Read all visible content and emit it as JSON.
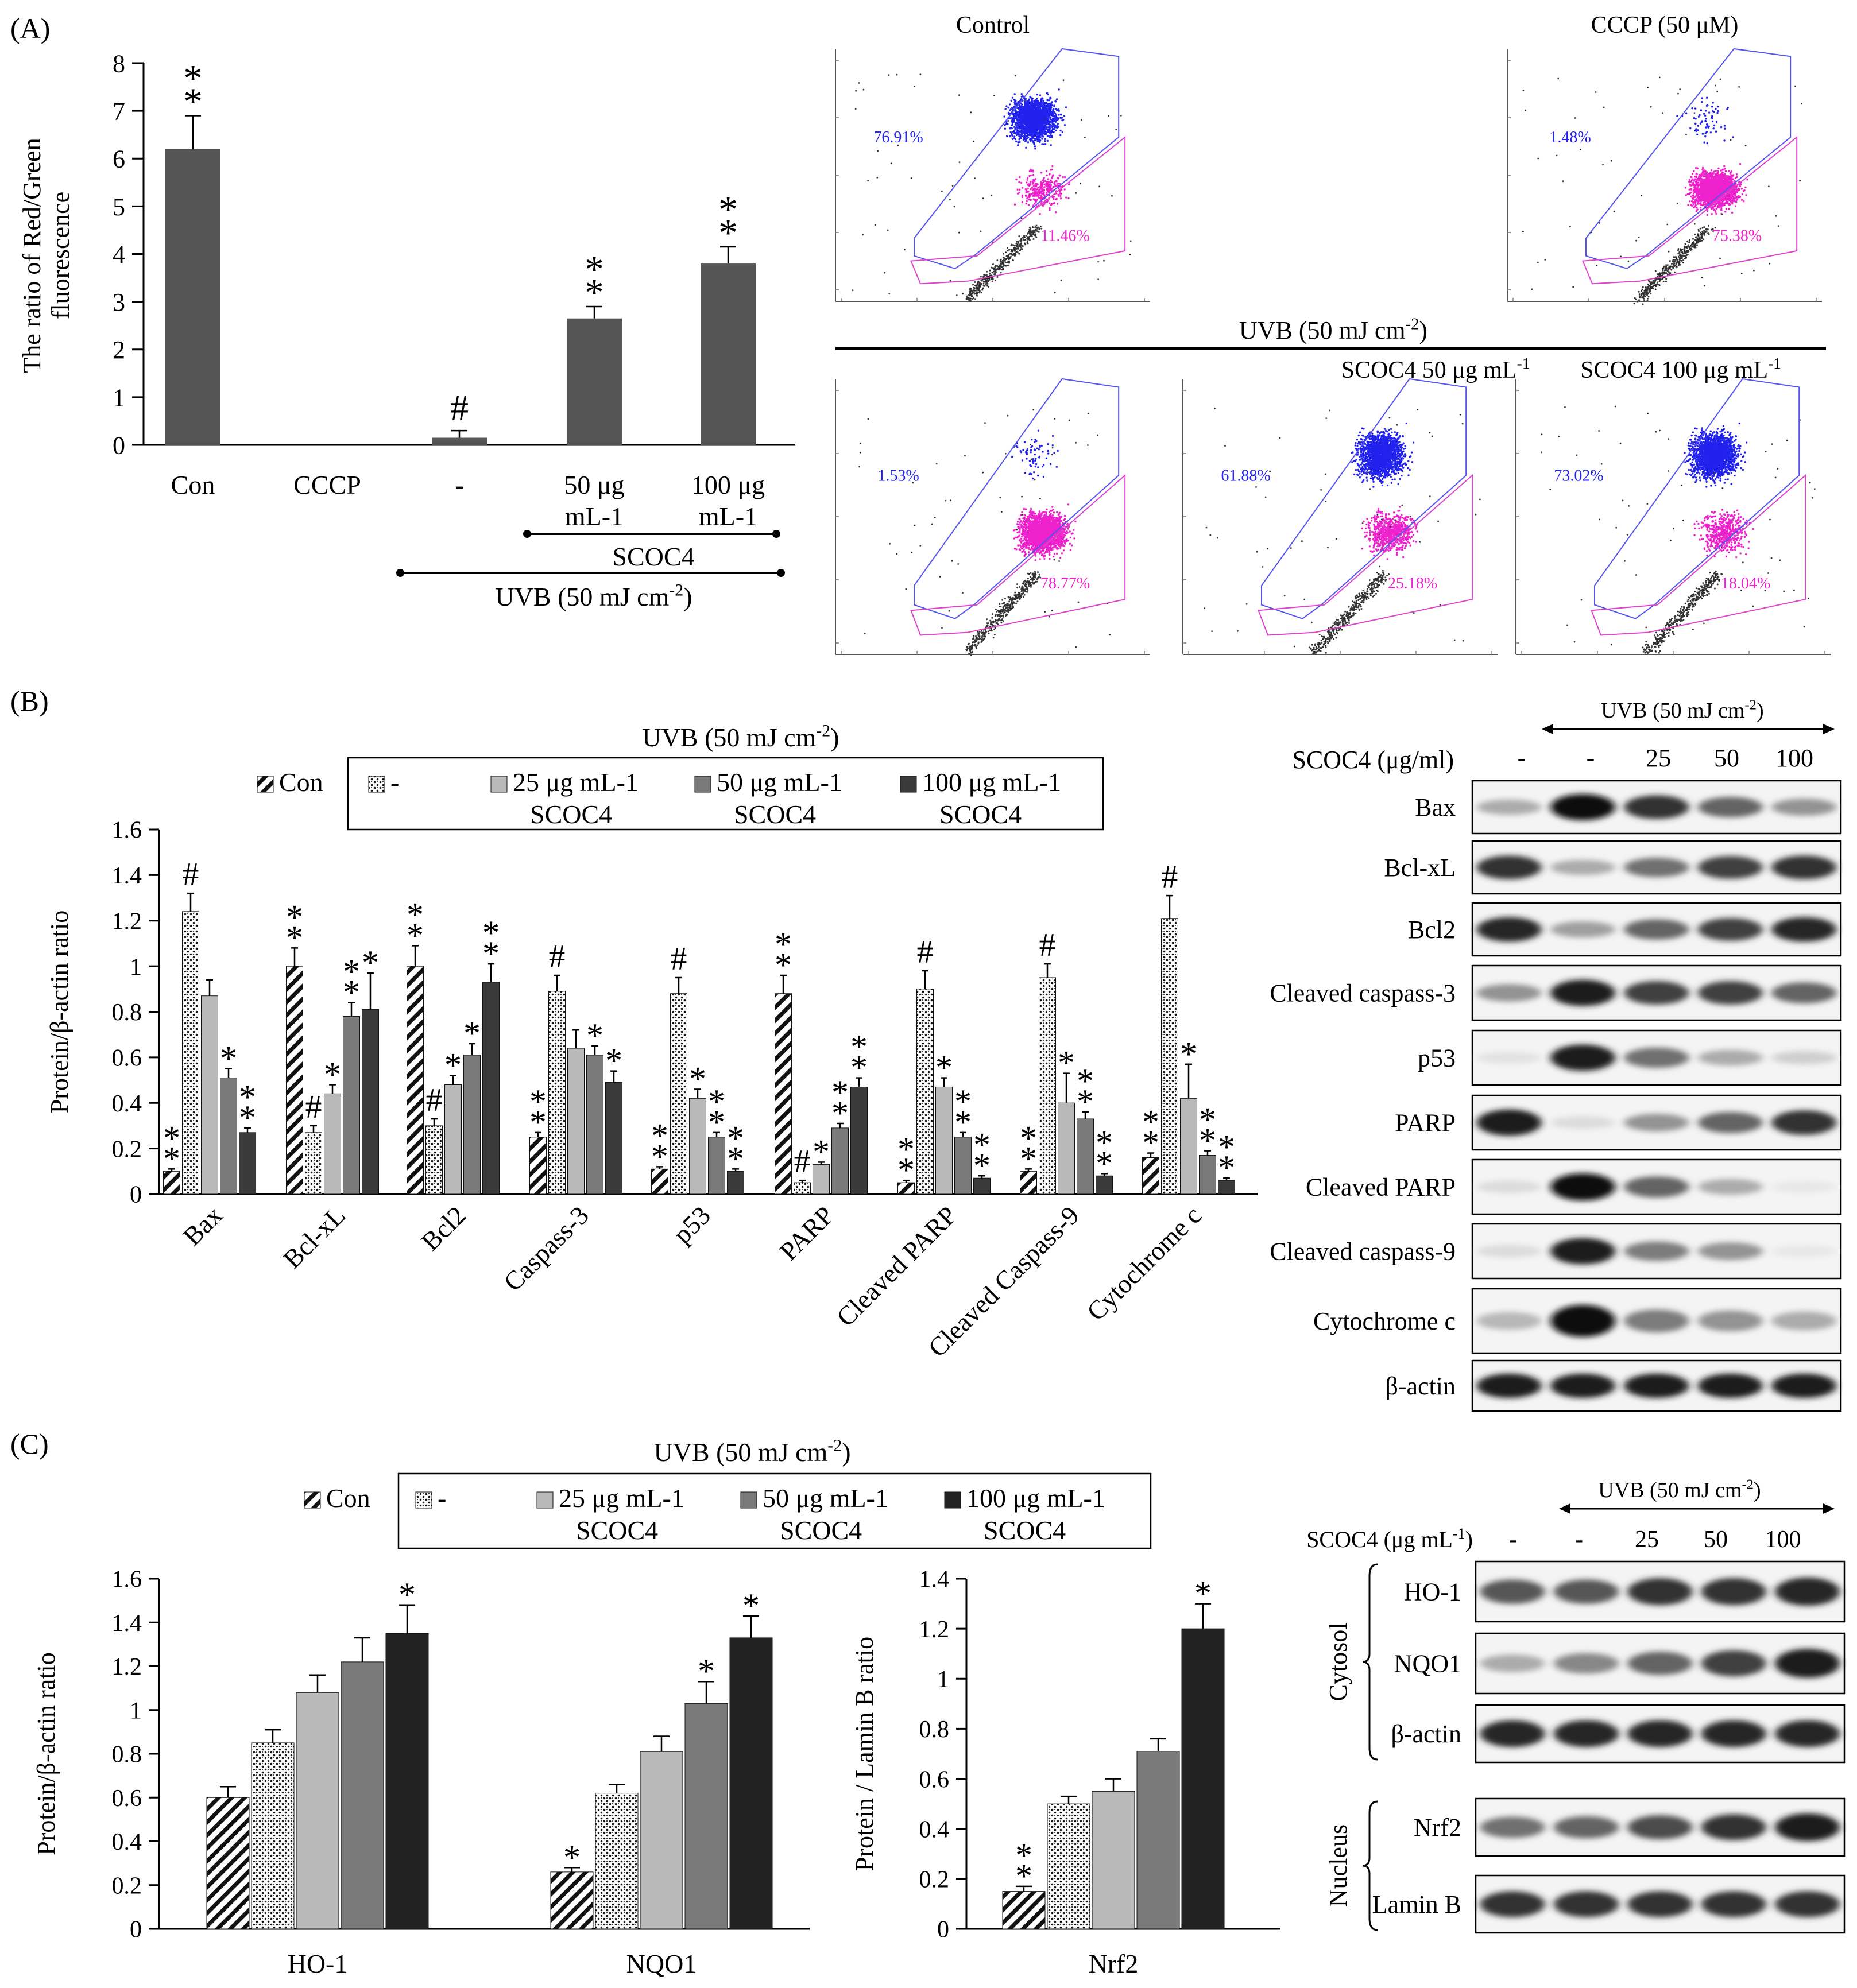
{
  "panels": {
    "A": "(A)",
    "B": "(B)",
    "C": "(C)"
  },
  "colors": {
    "barA": "#555555",
    "bar25": "#b9b9b9",
    "bar50": "#7a7a7a",
    "bar100B": "#3a3a3a",
    "bar100C": "#222222",
    "blue": "#2222ee",
    "magenta": "#ee22cc"
  },
  "chart_data": [
    {
      "id": "A",
      "type": "bar",
      "ylabel": "The ratio of Red/Green fluorescence",
      "ylabel_lines": [
        "The ratio of Red/Green",
        "fluorescence"
      ],
      "ylim": [
        0,
        8
      ],
      "yticks": [
        "0",
        "1",
        "2",
        "3",
        "4",
        "5",
        "6",
        "7",
        "8"
      ],
      "categories": [
        "Con",
        "CCCP",
        "-",
        "50 μg mL-1",
        "100 μg mL-1"
      ],
      "category_lines": [
        [
          "Con"
        ],
        [
          "CCCP"
        ],
        [
          "-"
        ],
        [
          "50 μg",
          "mL-1"
        ],
        [
          "100 μg",
          "mL-1"
        ]
      ],
      "values": [
        6.2,
        0.0,
        0.15,
        2.65,
        3.8
      ],
      "errors": [
        0.7,
        0.0,
        0.15,
        0.25,
        0.35
      ],
      "marks": [
        "**",
        "",
        "#",
        "**",
        "**"
      ],
      "group_labels": {
        "scoc4": "SCOC4",
        "uvb": "UVB (50 mJ cm",
        "uvb_sup": "-2",
        "uvb_end": ")"
      }
    },
    {
      "id": "B",
      "type": "bar",
      "ylabel": "Protein/β-actin ratio",
      "ylim": [
        0,
        1.6
      ],
      "yticks": [
        "0",
        "0.2",
        "0.4",
        "0.6",
        "0.8",
        "1",
        "1.2",
        "1.4",
        "1.6"
      ],
      "legend_title": {
        "text": "UVB (50 mJ cm",
        "sup": "-2",
        "end": ")"
      },
      "legend": [
        "Con",
        "-",
        "25 μg mL-1",
        "50 μg mL-1",
        "100 μg mL-1"
      ],
      "legend_sub": "SCOC4",
      "categories": [
        "Bax",
        "Bcl-xL",
        "Bcl2",
        "Caspass-3",
        "p53",
        "PARP",
        "Cleaved PARP",
        "Cleaved Caspass-9",
        "Cytochrome c"
      ],
      "series": [
        {
          "name": "Con",
          "values": [
            0.1,
            1.0,
            1.0,
            0.25,
            0.11,
            0.88,
            0.05,
            0.1,
            0.16
          ],
          "errors": [
            0.01,
            0.08,
            0.09,
            0.02,
            0.01,
            0.08,
            0.01,
            0.01,
            0.02
          ],
          "marks": [
            "**",
            "**",
            "**",
            "**",
            "**",
            "**",
            "**",
            "**",
            "**"
          ]
        },
        {
          "name": "-",
          "values": [
            1.24,
            0.27,
            0.3,
            0.89,
            0.88,
            0.05,
            0.9,
            0.95,
            1.21
          ],
          "errors": [
            0.08,
            0.03,
            0.03,
            0.07,
            0.07,
            0.01,
            0.08,
            0.06,
            0.1
          ],
          "marks": [
            "#",
            "#",
            "#",
            "#",
            "#",
            "#",
            "#",
            "#",
            "#"
          ]
        },
        {
          "name": "25 μg mL-1",
          "values": [
            0.87,
            0.44,
            0.48,
            0.64,
            0.42,
            0.13,
            0.47,
            0.4,
            0.42
          ],
          "errors": [
            0.07,
            0.04,
            0.04,
            0.08,
            0.04,
            0.01,
            0.04,
            0.13,
            0.15
          ],
          "marks": [
            "",
            "*",
            "*",
            "",
            "*",
            "*",
            "*",
            "*",
            "*"
          ]
        },
        {
          "name": "50 μg mL-1",
          "values": [
            0.51,
            0.78,
            0.61,
            0.61,
            0.25,
            0.29,
            0.25,
            0.33,
            0.17
          ],
          "errors": [
            0.04,
            0.06,
            0.05,
            0.04,
            0.02,
            0.02,
            0.02,
            0.03,
            0.02
          ],
          "marks": [
            "*",
            "**",
            "*",
            "*",
            "**",
            "**",
            "**",
            "**",
            "**"
          ]
        },
        {
          "name": "100 μg mL-1",
          "values": [
            0.27,
            0.81,
            0.93,
            0.49,
            0.1,
            0.47,
            0.07,
            0.08,
            0.06
          ],
          "errors": [
            0.02,
            0.16,
            0.08,
            0.05,
            0.01,
            0.04,
            0.01,
            0.01,
            0.01
          ],
          "marks": [
            "**",
            "*",
            "**",
            "*",
            "**",
            "**",
            "**",
            "**",
            "**"
          ]
        }
      ]
    },
    {
      "id": "C1",
      "type": "bar",
      "ylabel": "Protein/β-actin ratio",
      "ylim": [
        0,
        1.6
      ],
      "yticks": [
        "0",
        "0.2",
        "0.4",
        "0.6",
        "0.8",
        "1",
        "1.2",
        "1.4",
        "1.6"
      ],
      "legend_title": {
        "text": "UVB (50 mJ cm",
        "sup": "-2",
        "end": ")"
      },
      "legend": [
        "Con",
        "-",
        "25 μg mL-1",
        "50 μg mL-1",
        "100 μg mL-1"
      ],
      "legend_sub": "SCOC4",
      "categories": [
        "HO-1",
        "NQO1"
      ],
      "series": [
        {
          "name": "Con",
          "values": [
            0.6,
            0.26
          ],
          "errors": [
            0.05,
            0.02
          ],
          "marks": [
            "",
            "*"
          ]
        },
        {
          "name": "-",
          "values": [
            0.85,
            0.62
          ],
          "errors": [
            0.06,
            0.04
          ],
          "marks": [
            "",
            ""
          ]
        },
        {
          "name": "25 μg mL-1",
          "values": [
            1.08,
            0.81
          ],
          "errors": [
            0.08,
            0.07
          ],
          "marks": [
            "",
            ""
          ]
        },
        {
          "name": "50 μg mL-1",
          "values": [
            1.22,
            1.03
          ],
          "errors": [
            0.11,
            0.1
          ],
          "marks": [
            "",
            "*"
          ]
        },
        {
          "name": "100 μg mL-1",
          "values": [
            1.35,
            1.33
          ],
          "errors": [
            0.13,
            0.1
          ],
          "marks": [
            "*",
            "*"
          ]
        }
      ]
    },
    {
      "id": "C2",
      "type": "bar",
      "ylabel": "Protein / Lamin B ratio",
      "ylim": [
        0,
        1.4
      ],
      "yticks": [
        "0",
        "0.2",
        "0.4",
        "0.6",
        "0.8",
        "1",
        "1.2",
        "1.4"
      ],
      "categories": [
        "Nrf2"
      ],
      "series": [
        {
          "name": "Con",
          "values": [
            0.15
          ],
          "errors": [
            0.02
          ],
          "marks": [
            "**"
          ]
        },
        {
          "name": "-",
          "values": [
            0.5
          ],
          "errors": [
            0.03
          ],
          "marks": [
            ""
          ]
        },
        {
          "name": "25 μg mL-1",
          "values": [
            0.55
          ],
          "errors": [
            0.05
          ],
          "marks": [
            ""
          ]
        },
        {
          "name": "50 μg mL-1",
          "values": [
            0.71
          ],
          "errors": [
            0.05
          ],
          "marks": [
            ""
          ]
        },
        {
          "name": "100 μg mL-1",
          "values": [
            1.2
          ],
          "errors": [
            0.1
          ],
          "marks": [
            "*"
          ]
        }
      ]
    }
  ],
  "flow": {
    "uvb_header": {
      "text": "UVB (50 mJ cm",
      "sup": "-2",
      "end": ")"
    },
    "plots": [
      {
        "title": "Control",
        "title_sup": "",
        "upper": "76.91%",
        "lower": "11.46%",
        "upper_frac": 0.77,
        "lower_frac": 0.11
      },
      {
        "title": "CCCP (50 μM)",
        "title_sup": "",
        "upper": "1.48%",
        "lower": "75.38%",
        "upper_frac": 0.015,
        "lower_frac": 0.75
      },
      {
        "title": "",
        "title_sup": "",
        "upper": "1.53%",
        "lower": "78.77%",
        "upper_frac": 0.015,
        "lower_frac": 0.79
      },
      {
        "title": "SCOC4 50 μg mL",
        "title_sup": "-1",
        "upper": "61.88%",
        "lower": "25.18%",
        "upper_frac": 0.62,
        "lower_frac": 0.25
      },
      {
        "title": "SCOC4 100 μg mL",
        "title_sup": "-1",
        "upper": "73.02%",
        "lower": "18.04%",
        "upper_frac": 0.73,
        "lower_frac": 0.18
      }
    ]
  },
  "westernB": {
    "uvb": {
      "text": "UVB (50 mJ cm",
      "sup": "-2",
      "end": ")"
    },
    "scoc4_label": "SCOC4 (μg/ml)",
    "lanes": [
      "-",
      "-",
      "25",
      "50",
      "100"
    ],
    "rows": [
      {
        "label": "Bax",
        "intensity": [
          0.35,
          1.0,
          0.85,
          0.65,
          0.45
        ]
      },
      {
        "label": "Bcl-xL",
        "intensity": [
          0.85,
          0.35,
          0.6,
          0.8,
          0.85
        ]
      },
      {
        "label": "Bcl2",
        "intensity": [
          0.9,
          0.4,
          0.65,
          0.8,
          0.9
        ]
      },
      {
        "label": "Cleaved caspass-3",
        "intensity": [
          0.45,
          0.95,
          0.8,
          0.8,
          0.65
        ]
      },
      {
        "label": "p53",
        "intensity": [
          0.12,
          0.95,
          0.6,
          0.35,
          0.2
        ]
      },
      {
        "label": "PARP",
        "intensity": [
          0.95,
          0.15,
          0.45,
          0.65,
          0.85
        ]
      },
      {
        "label": "Cleaved PARP",
        "intensity": [
          0.15,
          1.0,
          0.65,
          0.35,
          0.1
        ]
      },
      {
        "label": "Cleaved caspass-9",
        "intensity": [
          0.15,
          0.95,
          0.55,
          0.45,
          0.1
        ]
      },
      {
        "label": "Cytochrome c",
        "intensity": [
          0.3,
          1.0,
          0.55,
          0.45,
          0.35
        ]
      },
      {
        "label": "β-actin",
        "intensity": [
          0.95,
          0.95,
          0.95,
          0.95,
          0.95
        ]
      }
    ]
  },
  "westernC": {
    "uvb": {
      "text": "UVB (50 mJ cm",
      "sup": "-2",
      "end": ")"
    },
    "scoc4_label": "SCOC4 (μg mL",
    "scoc4_sup": "-1",
    "scoc4_end": ")",
    "lanes": [
      "-",
      "-",
      "25",
      "50",
      "100"
    ],
    "groups": [
      {
        "label": "Cytosol",
        "rows": [
          {
            "label": "HO-1",
            "intensity": [
              0.7,
              0.7,
              0.85,
              0.85,
              0.9
            ]
          },
          {
            "label": "NQO1",
            "intensity": [
              0.35,
              0.5,
              0.65,
              0.8,
              0.95
            ]
          },
          {
            "label": "β-actin",
            "intensity": [
              0.9,
              0.9,
              0.9,
              0.9,
              0.9
            ]
          }
        ]
      },
      {
        "label": "Nucleus",
        "rows": [
          {
            "label": "Nrf2",
            "intensity": [
              0.6,
              0.65,
              0.75,
              0.85,
              0.95
            ]
          },
          {
            "label": "Lamin B",
            "intensity": [
              0.85,
              0.85,
              0.85,
              0.85,
              0.85
            ]
          }
        ]
      }
    ]
  }
}
